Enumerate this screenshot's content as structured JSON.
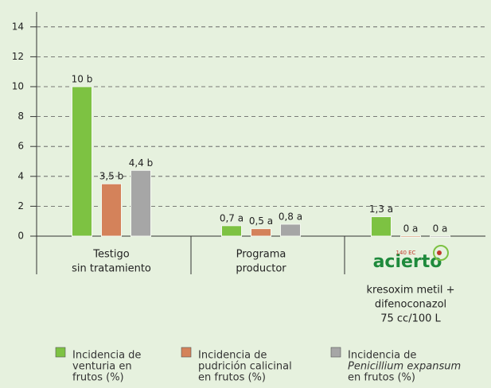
{
  "chart_data": {
    "type": "bar",
    "categories": [
      [
        "Testigo",
        "sin tratamiento"
      ],
      [
        "Programa",
        "productor"
      ],
      [
        "kresoxim metil +",
        "difenoconazol",
        "75 cc/100 L"
      ]
    ],
    "logo": {
      "name": "acierto",
      "label": "140 EC"
    },
    "series": [
      {
        "name": [
          "Incidencia de",
          "venturia en",
          "frutos (%)"
        ],
        "color": "#7dc242",
        "values": [
          10,
          0.7,
          1.3
        ],
        "value_labels": [
          "10 b",
          "0,7 a",
          "1,3 a"
        ]
      },
      {
        "name": [
          "Incidencia de",
          "pudrición calicinal",
          "en frutos (%)"
        ],
        "color": "#d4825a",
        "values": [
          3.5,
          0.5,
          0
        ],
        "value_labels": [
          "3,5 b",
          "0,5 a",
          "0 a"
        ]
      },
      {
        "name": [
          "Incidencia de",
          "Penicillium expansum",
          "en frutos (%)"
        ],
        "color": "#a6a6a6",
        "values": [
          4.4,
          0.8,
          0
        ],
        "value_labels": [
          "4,4 b",
          "0,8 a",
          "0 a"
        ]
      }
    ],
    "ylim": [
      0,
      15
    ],
    "yticks": [
      0,
      2,
      4,
      6,
      8,
      10,
      12,
      14
    ],
    "grid": true
  }
}
